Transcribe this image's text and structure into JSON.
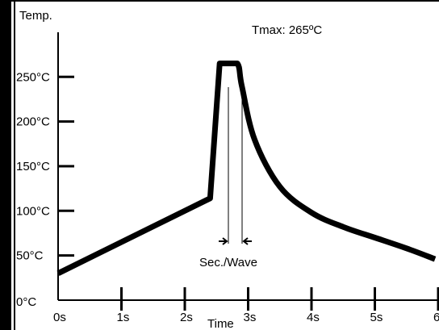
{
  "chart_data": {
    "type": "line",
    "ylabel": "Temp.",
    "xlabel": "Time",
    "x_ticks": [
      "0s",
      "1s",
      "2s",
      "3s",
      "4s",
      "5s",
      "6s"
    ],
    "y_ticks": [
      "0°C",
      "50°C",
      "100°C",
      "150°C",
      "200°C",
      "250°C"
    ],
    "xlim": [
      0,
      6
    ],
    "ylim": [
      0,
      250
    ],
    "series": [
      {
        "x": [
          0,
          2.4,
          2.55,
          2.62,
          2.83,
          2.9,
          3.1,
          3.5,
          4.0,
          4.5,
          5.0,
          5.5,
          5.95
        ],
        "y": [
          30,
          114,
          265,
          265,
          265,
          240,
          180,
          127,
          98,
          82,
          70,
          58,
          46
        ]
      }
    ],
    "annotations": {
      "tmax": "Tmax: 265ºC",
      "wave": "Sec./Wave"
    },
    "colors": {
      "line": "#000000",
      "background": "#ffffff"
    }
  }
}
